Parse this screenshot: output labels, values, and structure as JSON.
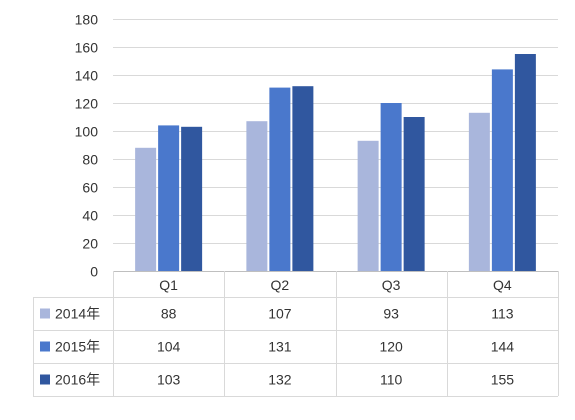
{
  "chart_data": {
    "type": "bar",
    "categories": [
      "Q1",
      "Q2",
      "Q3",
      "Q4"
    ],
    "series": [
      {
        "name": "2014年",
        "values": [
          88,
          107,
          93,
          113
        ],
        "color": "#a9b6dc"
      },
      {
        "name": "2015年",
        "values": [
          104,
          131,
          120,
          144
        ],
        "color": "#4a78cc"
      },
      {
        "name": "2016年",
        "values": [
          103,
          132,
          110,
          155
        ],
        "color": "#30579f"
      }
    ],
    "ylim": [
      0,
      180
    ],
    "yticks": [
      0,
      20,
      40,
      60,
      80,
      100,
      120,
      140,
      160,
      180
    ],
    "grid": true,
    "legend": "data-table",
    "title": "",
    "xlabel": "",
    "ylabel": ""
  }
}
